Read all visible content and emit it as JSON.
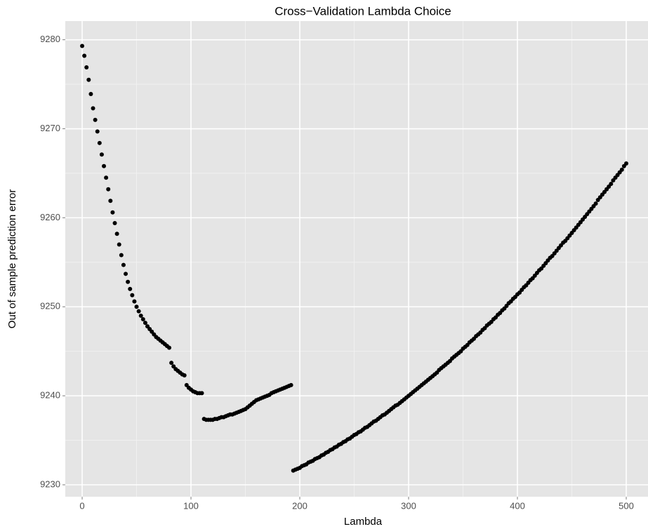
{
  "chart_data": {
    "type": "scatter",
    "title": "Cross−Validation Lambda Choice",
    "xlabel": "Lambda",
    "ylabel": "Out of sample prediction error",
    "color": "#000000",
    "grid": true,
    "xlim": [
      -15.5,
      520
    ],
    "ylim": [
      9228.66,
      9282.1
    ],
    "xticks": [
      0,
      100,
      200,
      300,
      400,
      500
    ],
    "yticks": [
      9230,
      9240,
      9250,
      9260,
      9270,
      9280
    ],
    "xminorticks": [
      50,
      150,
      250,
      350,
      450
    ],
    "yminorticks": [
      9235,
      9245,
      9255,
      9265,
      9275
    ],
    "x": [
      0,
      2,
      4,
      6,
      8,
      10,
      12,
      14,
      16,
      18,
      20,
      22,
      24,
      26,
      28,
      30,
      32,
      34,
      36,
      38,
      40,
      42,
      44,
      46,
      48,
      50,
      52,
      54,
      56,
      58,
      60,
      62,
      64,
      66,
      68,
      70,
      72,
      74,
      76,
      78,
      80,
      82,
      84,
      86,
      88,
      90,
      92,
      94,
      96,
      98,
      100,
      102,
      104,
      106,
      108,
      110,
      112,
      114,
      116,
      118,
      120,
      122,
      124,
      126,
      128,
      130,
      132,
      134,
      136,
      138,
      140,
      142,
      144,
      146,
      148,
      150,
      152,
      154,
      156,
      158,
      160,
      162,
      164,
      166,
      168,
      170,
      172,
      174,
      176,
      178,
      180,
      182,
      184,
      186,
      188,
      190,
      192,
      194,
      196,
      198,
      200,
      202,
      204,
      206,
      208,
      210,
      212,
      214,
      216,
      218,
      220,
      222,
      224,
      226,
      228,
      230,
      232,
      234,
      236,
      238,
      240,
      242,
      244,
      246,
      248,
      250,
      252,
      254,
      256,
      258,
      260,
      262,
      264,
      266,
      268,
      270,
      272,
      274,
      276,
      278,
      280,
      282,
      284,
      286,
      288,
      290,
      292,
      294,
      296,
      298,
      300,
      302,
      304,
      306,
      308,
      310,
      312,
      314,
      316,
      318,
      320,
      322,
      324,
      326,
      328,
      330,
      332,
      334,
      336,
      338,
      340,
      342,
      344,
      346,
      348,
      350,
      352,
      354,
      356,
      358,
      360,
      362,
      364,
      366,
      368,
      370,
      372,
      374,
      376,
      378,
      380,
      382,
      384,
      386,
      388,
      390,
      392,
      394,
      396,
      398,
      400,
      402,
      404,
      406,
      408,
      410,
      412,
      414,
      416,
      418,
      420,
      422,
      424,
      426,
      428,
      430,
      432,
      434,
      436,
      438,
      440,
      442,
      444,
      446,
      448,
      450,
      452,
      454,
      456,
      458,
      460,
      462,
      464,
      466,
      468,
      470,
      472,
      474,
      476,
      478,
      480,
      482,
      484,
      486,
      488,
      490,
      492,
      494,
      496,
      498,
      500
    ],
    "y": [
      9279.3,
      9278.2,
      9276.9,
      9275.5,
      9273.9,
      9272.3,
      9271.0,
      9269.7,
      9268.4,
      9267.1,
      9265.8,
      9264.5,
      9263.2,
      9261.9,
      9260.6,
      9259.4,
      9258.2,
      9257.0,
      9255.8,
      9254.7,
      9253.7,
      9252.8,
      9252.0,
      9251.3,
      9250.6,
      9250.0,
      9249.5,
      9249.0,
      9248.6,
      9248.2,
      9247.8,
      9247.5,
      9247.2,
      9246.9,
      9246.6,
      9246.4,
      9246.2,
      9246.0,
      9245.8,
      9245.6,
      9245.4,
      9243.7,
      9243.3,
      9243.0,
      9242.8,
      9242.6,
      9242.4,
      9242.3,
      9241.2,
      9240.9,
      9240.7,
      9240.5,
      9240.4,
      9240.3,
      9240.3,
      9240.3,
      9237.4,
      9237.3,
      9237.3,
      9237.3,
      9237.3,
      9237.4,
      9237.4,
      9237.5,
      9237.6,
      9237.6,
      9237.7,
      9237.8,
      9237.9,
      9237.9,
      9238.0,
      9238.1,
      9238.2,
      9238.3,
      9238.4,
      9238.5,
      9238.7,
      9238.9,
      9239.1,
      9239.3,
      9239.5,
      9239.6,
      9239.7,
      9239.8,
      9239.9,
      9240.0,
      9240.1,
      9240.3,
      9240.4,
      9240.5,
      9240.6,
      9240.7,
      9240.8,
      9240.9,
      9241.0,
      9241.1,
      9241.2,
      9231.6,
      9231.7,
      9231.8,
      9231.9,
      9232.1,
      9232.2,
      9232.3,
      9232.5,
      9232.6,
      9232.7,
      9232.9,
      9233.0,
      9233.1,
      9233.3,
      9233.4,
      9233.6,
      9233.7,
      9233.9,
      9234.0,
      9234.2,
      9234.3,
      9234.5,
      9234.6,
      9234.8,
      9234.9,
      9235.1,
      9235.2,
      9235.4,
      9235.6,
      9235.7,
      9235.9,
      9236.0,
      9236.2,
      9236.4,
      9236.5,
      9236.7,
      9236.9,
      9237.1,
      9237.2,
      9237.4,
      9237.6,
      9237.8,
      9237.9,
      9238.1,
      9238.3,
      9238.5,
      9238.7,
      9238.9,
      9239.0,
      9239.2,
      9239.4,
      9239.6,
      9239.8,
      9240.0,
      9240.2,
      9240.4,
      9240.6,
      9240.8,
      9241.0,
      9241.2,
      9241.4,
      9241.6,
      9241.8,
      9242.0,
      9242.2,
      9242.4,
      9242.6,
      9242.9,
      9243.1,
      9243.3,
      9243.5,
      9243.7,
      9243.9,
      9244.2,
      9244.4,
      9244.6,
      9244.8,
      9245.0,
      9245.3,
      9245.5,
      9245.7,
      9246.0,
      9246.2,
      9246.4,
      9246.7,
      9246.9,
      9247.1,
      9247.4,
      9247.6,
      9247.9,
      9248.1,
      9248.3,
      9248.6,
      9248.8,
      9249.1,
      9249.3,
      9249.6,
      9249.8,
      9250.1,
      9250.4,
      9250.6,
      9250.9,
      9251.1,
      9251.4,
      9251.6,
      9251.9,
      9252.2,
      9252.4,
      9252.7,
      9253.0,
      9253.2,
      9253.5,
      9253.8,
      9254.1,
      9254.3,
      9254.6,
      9254.9,
      9255.2,
      9255.5,
      9255.7,
      9256.0,
      9256.3,
      9256.6,
      9256.9,
      9257.2,
      9257.4,
      9257.7,
      9258.0,
      9258.3,
      9258.6,
      9258.9,
      9259.2,
      9259.5,
      9259.8,
      9260.1,
      9260.4,
      9260.7,
      9261.0,
      9261.3,
      9261.6,
      9262.0,
      9262.3,
      9262.6,
      9262.9,
      9263.2,
      9263.5,
      9263.8,
      9264.2,
      9264.5,
      9264.8,
      9265.1,
      9265.4,
      9265.8,
      9266.1
    ]
  }
}
